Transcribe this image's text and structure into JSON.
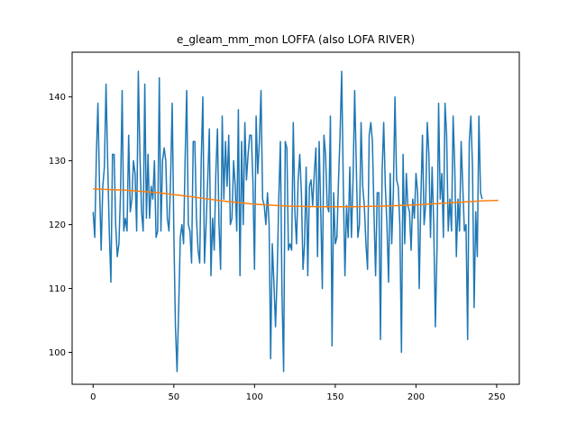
{
  "chart_data": {
    "type": "line",
    "title": "e_gleam_mm_mon LOFFA (also LOFA RIVER)",
    "xlabel": "",
    "ylabel": "",
    "xlim": [
      -13,
      264
    ],
    "ylim": [
      95,
      147
    ],
    "xticks": [
      0,
      50,
      100,
      150,
      200,
      250
    ],
    "yticks": [
      100,
      110,
      120,
      130,
      140
    ],
    "grid": false,
    "legend": "none",
    "series": [
      {
        "color": "#1f77b4",
        "x_start": 0,
        "x_step": 1,
        "values": [
          122,
          118,
          131,
          139,
          126,
          116,
          126,
          129,
          142,
          130,
          119,
          111,
          131,
          131,
          120,
          115,
          117,
          125,
          141,
          119,
          121,
          119,
          134,
          122,
          124,
          130,
          128,
          119,
          144,
          131,
          122,
          119,
          142,
          121,
          131,
          121,
          126,
          124,
          130,
          118,
          119,
          143,
          119,
          130,
          132,
          130,
          121,
          119,
          127,
          139,
          119,
          104,
          97,
          107,
          118,
          120,
          117,
          130,
          141,
          120,
          119,
          114,
          133,
          133,
          121,
          116,
          114,
          130,
          140,
          114,
          120,
          127,
          135,
          112,
          121,
          116,
          128,
          135,
          120,
          113,
          137,
          124,
          133,
          126,
          134,
          120,
          121,
          130,
          126,
          119,
          138,
          112,
          133,
          120,
          136,
          127,
          131,
          134,
          134,
          127,
          113,
          137,
          128,
          133,
          141,
          124,
          123,
          120,
          125,
          120,
          99,
          117,
          111,
          104,
          112,
          124,
          133,
          109,
          97,
          133,
          132,
          116,
          117,
          116,
          136,
          122,
          117,
          127,
          131,
          125,
          113,
          117,
          129,
          112,
          126,
          127,
          123,
          128,
          132,
          115,
          133,
          122,
          110,
          134,
          131,
          123,
          122,
          137,
          101,
          125,
          117,
          118,
          127,
          134,
          144,
          126,
          112,
          123,
          118,
          129,
          118,
          127,
          141,
          130,
          118,
          120,
          136,
          126,
          123,
          117,
          113,
          134,
          136,
          133,
          122,
          112,
          125,
          125,
          102,
          128,
          136,
          126,
          120,
          111,
          128,
          117,
          125,
          140,
          127,
          126,
          120,
          100,
          131,
          117,
          128,
          123,
          122,
          116,
          124,
          121,
          128,
          125,
          110,
          124,
          134,
          120,
          123,
          136,
          131,
          118,
          129,
          120,
          104,
          116,
          139,
          124,
          128,
          118,
          139,
          134,
          119,
          124,
          119,
          137,
          129,
          115,
          124,
          119,
          133,
          126,
          119,
          120,
          102,
          133,
          137,
          129,
          107,
          122,
          115,
          137,
          125,
          124
        ]
      },
      {
        "color": "#ff7f0e",
        "x": [
          0,
          20,
          40,
          60,
          80,
          100,
          120,
          140,
          150,
          160,
          180,
          200,
          220,
          240,
          251
        ],
        "values": [
          125.6,
          125.4,
          125.0,
          124.4,
          123.7,
          123.2,
          122.9,
          122.8,
          122.8,
          122.8,
          122.9,
          123.1,
          123.4,
          123.7,
          123.8
        ]
      }
    ]
  }
}
